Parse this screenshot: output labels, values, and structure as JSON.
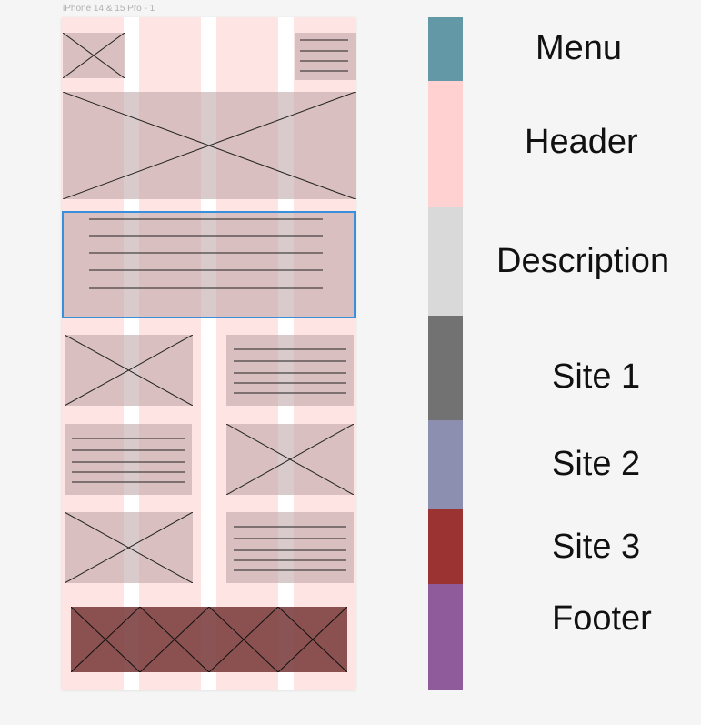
{
  "frame": {
    "label": "iPhone 14 & 15 Pro - 1"
  },
  "legend": [
    {
      "key": "menu",
      "label": "Menu",
      "color": "#6399a6"
    },
    {
      "key": "header",
      "label": "Header",
      "color": "#ffd1d1"
    },
    {
      "key": "description",
      "label": "Description",
      "color": "#d9d9d9"
    },
    {
      "key": "site1",
      "label": "Site 1",
      "color": "#727272"
    },
    {
      "key": "site2",
      "label": "Site 2",
      "color": "#8d8fb0"
    },
    {
      "key": "site3",
      "label": "Site 3",
      "color": "#9b3333"
    },
    {
      "key": "footer",
      "label": "Footer",
      "color": "#8f5b9b"
    }
  ],
  "colors": {
    "frame_bg": "#ffe4e4",
    "block_fill": "#d4b9b9",
    "footer_fill": "#7a3a3a",
    "selection": "#3a8fdc"
  },
  "wireframe_blocks": [
    {
      "name": "menu-logo-placeholder",
      "kind": "image"
    },
    {
      "name": "menu-hamburger-placeholder",
      "kind": "text"
    },
    {
      "name": "header-image-placeholder",
      "kind": "image"
    },
    {
      "name": "description-text-placeholder",
      "kind": "text",
      "selected": true
    },
    {
      "name": "site1-image-placeholder",
      "kind": "image"
    },
    {
      "name": "site1-text-placeholder",
      "kind": "text"
    },
    {
      "name": "site2-text-placeholder",
      "kind": "text"
    },
    {
      "name": "site2-image-placeholder",
      "kind": "image"
    },
    {
      "name": "site3-image-placeholder",
      "kind": "image"
    },
    {
      "name": "site3-text-placeholder",
      "kind": "text"
    },
    {
      "name": "footer-image-placeholder",
      "kind": "image"
    }
  ]
}
